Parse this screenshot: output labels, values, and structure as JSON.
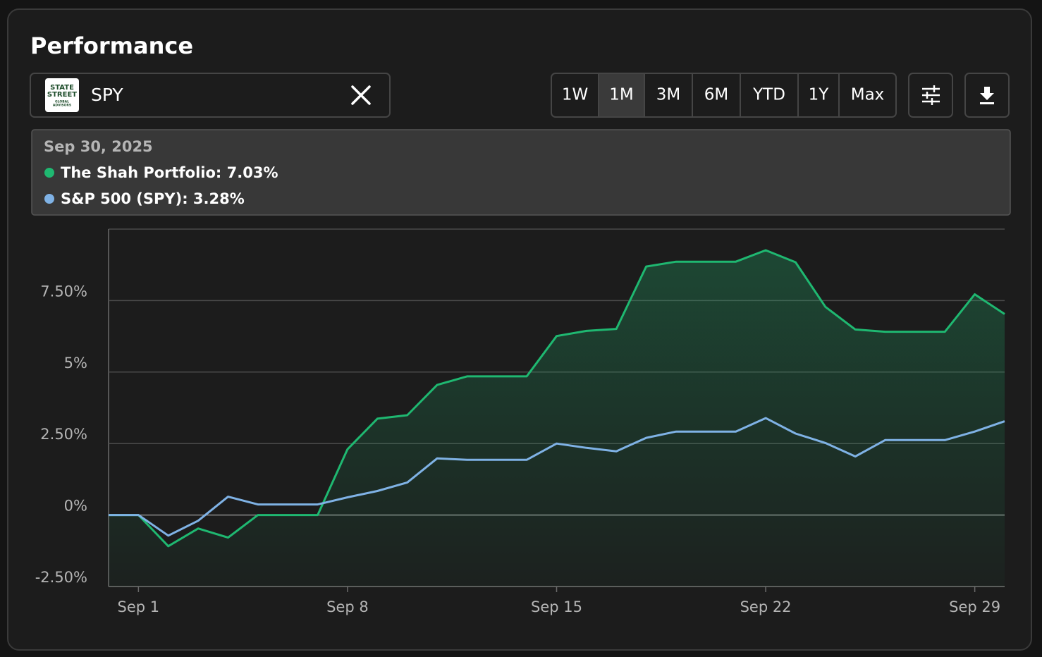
{
  "header": {
    "title": "Performance"
  },
  "selector": {
    "logo_lines": [
      "STATE",
      "STREET",
      "GLOBAL",
      "ADVISORS"
    ],
    "ticker": "SPY"
  },
  "ranges": {
    "options": [
      "1W",
      "1M",
      "3M",
      "6M",
      "YTD",
      "1Y",
      "Max"
    ],
    "active": "1M"
  },
  "tooltip": {
    "date": "Sep 30, 2025",
    "lines": [
      "The Shah Portfolio: 7.03%",
      "S&P 500 (SPY): 3.28%"
    ]
  },
  "chart_data": {
    "type": "area-line",
    "categories": [
      null,
      "Sep 1",
      null,
      null,
      null,
      null,
      null,
      null,
      "Sep 8",
      null,
      null,
      null,
      null,
      null,
      null,
      "Sep 15",
      null,
      null,
      null,
      null,
      null,
      null,
      "Sep 22",
      null,
      null,
      null,
      null,
      null,
      null,
      "Sep 29",
      null
    ],
    "series": [
      {
        "name": "The Shah Portfolio",
        "color": "#1fb871",
        "fill": true,
        "values": [
          0,
          0,
          -1.09,
          -0.47,
          -0.79,
          0,
          0,
          0,
          2.3,
          3.37,
          3.49,
          4.55,
          4.85,
          4.85,
          4.85,
          6.26,
          6.44,
          6.51,
          8.69,
          8.86,
          8.86,
          8.86,
          9.26,
          8.84,
          7.28,
          6.49,
          6.41,
          6.41,
          6.41,
          7.72,
          7.03
        ]
      },
      {
        "name": "S&P 500 (SPY)",
        "color": "#7fb2e5",
        "fill": false,
        "values": [
          0,
          0,
          -0.72,
          -0.2,
          0.64,
          0.37,
          0.37,
          0.37,
          0.62,
          0.84,
          1.14,
          1.98,
          1.93,
          1.93,
          1.93,
          2.5,
          2.35,
          2.23,
          2.7,
          2.92,
          2.92,
          2.92,
          3.39,
          2.85,
          2.52,
          2.05,
          2.62,
          2.62,
          2.62,
          2.92,
          3.28
        ]
      }
    ],
    "ylim": [
      -2.5,
      10
    ],
    "yticks": [
      {
        "value": -2.5,
        "label": "-2.50%"
      },
      {
        "value": 0,
        "label": "0%"
      },
      {
        "value": 2.5,
        "label": "2.50%"
      },
      {
        "value": 5,
        "label": "5%"
      },
      {
        "value": 7.5,
        "label": "7.50%"
      }
    ],
    "grid": true
  }
}
